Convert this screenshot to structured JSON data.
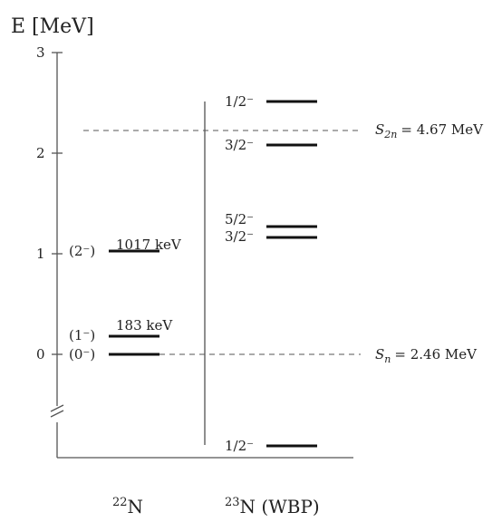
{
  "axis": {
    "title": "E [MeV]",
    "ticks": [
      "3",
      "2",
      "1",
      "0"
    ]
  },
  "left_nucleus": {
    "label_super": "22",
    "label_main": "N",
    "levels": [
      {
        "spin": "(2⁻)",
        "energy_label": "1017 keV",
        "energy": 1.017
      },
      {
        "spin": "(1⁻)",
        "energy_label": "183 keV",
        "energy": 0.183
      },
      {
        "spin": "(0⁻)",
        "energy_label": "",
        "energy": 0.0
      }
    ]
  },
  "right_nucleus": {
    "label_super": "23",
    "label_main": "N (WBP)",
    "levels": [
      {
        "spin": "1/2⁻",
        "energy": 2.5
      },
      {
        "spin": "3/2⁻",
        "energy": 2.07
      },
      {
        "spin": "5/2⁻",
        "energy": 1.26
      },
      {
        "spin": "3/2⁻",
        "energy": 1.16
      },
      {
        "spin": "1/2⁻",
        "energy_label": "",
        "position": "bottom"
      }
    ]
  },
  "thresholds": [
    {
      "symbol": "S",
      "subscript": "2n",
      "value_text": "= 4.67 MeV",
      "energy": 2.21
    },
    {
      "symbol": "S",
      "subscript": "n",
      "value_text": "= 2.46 MeV",
      "energy": 0.0
    }
  ]
}
